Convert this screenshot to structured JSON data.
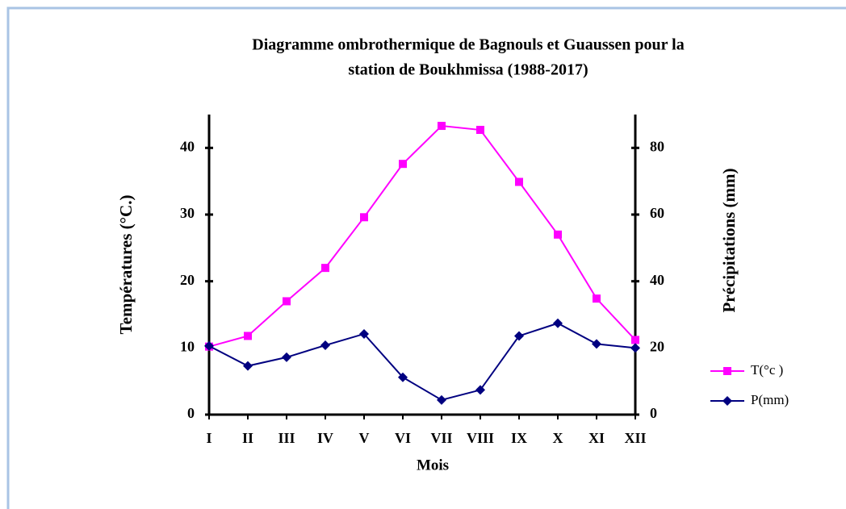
{
  "chart_data": {
    "type": "line",
    "title": [
      "Diagramme ombrothermique de Bagnouls et Guaussen pour la",
      "station de Boukhmissa (1988-2017)"
    ],
    "x_label": "Mois",
    "y_label": "Températures (°C.)",
    "y2_label": "Précipitations (mm)",
    "categories": [
      "I",
      "II",
      "III",
      "IV",
      "V",
      "VI",
      "VII",
      "VIII",
      "IX",
      "X",
      "XI",
      "XII"
    ],
    "series": [
      {
        "name": "T(°c )",
        "color": "#ff00ff",
        "marker": "square",
        "values": [
          10.2,
          11.8,
          17,
          22,
          29.6,
          37.6,
          43.3,
          42.7,
          34.9,
          27,
          17.4,
          11.2
        ]
      },
      {
        "name": "P(mm)",
        "color": "#000080",
        "marker": "diamond",
        "axis": "y2",
        "values": [
          20.6,
          14.6,
          17.2,
          20.8,
          24.2,
          11.2,
          4.4,
          7.4,
          23.6,
          27.4,
          21.2,
          20
        ]
      }
    ],
    "ylim": [
      0,
      45
    ],
    "yticks": [
      0,
      10,
      20,
      30,
      40
    ],
    "y2lim": [
      0,
      90
    ],
    "y2ticks": [
      0,
      20,
      40,
      60,
      80
    ],
    "legend": "right"
  }
}
